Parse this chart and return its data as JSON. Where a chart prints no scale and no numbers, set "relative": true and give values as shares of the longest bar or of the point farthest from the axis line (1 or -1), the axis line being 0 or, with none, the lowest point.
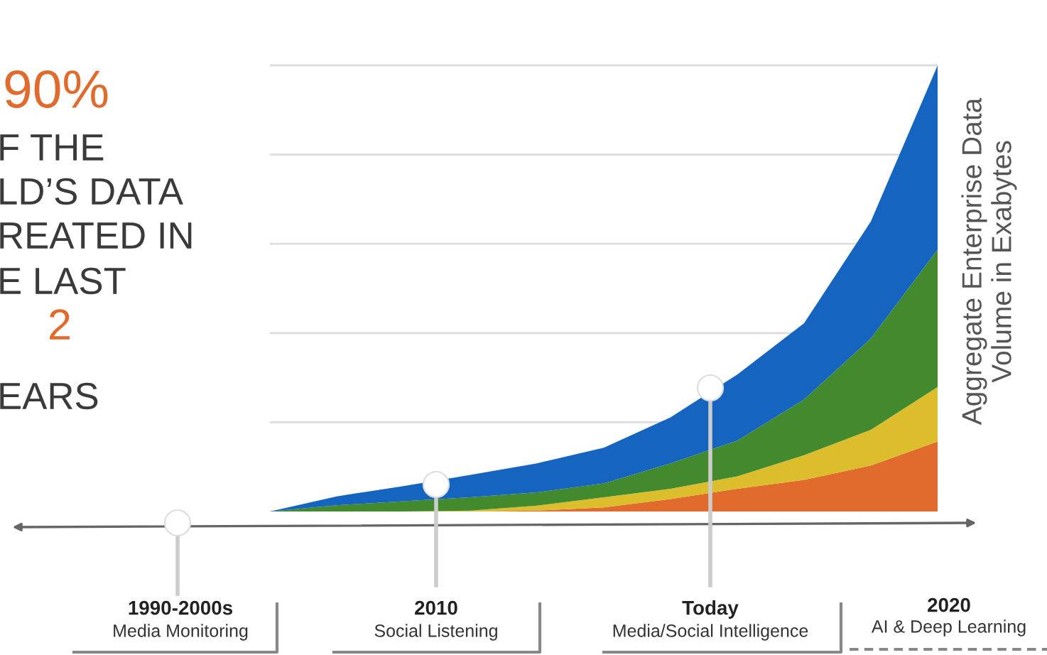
{
  "chart_data": {
    "type": "area",
    "stacked": true,
    "relative": true,
    "grid": "y",
    "legend": false,
    "ylabel": "Aggregate Enterprise Data\nVolume in Exabytes",
    "categories": [
      null,
      null,
      null,
      null,
      null,
      null,
      null,
      null,
      null,
      null,
      null
    ],
    "series": [
      {
        "color": "#e06b2c",
        "values": [
          0,
          0,
          0,
          0,
          0.002,
          0.009,
          0.028,
          0.051,
          0.071,
          0.103,
          0.157
        ]
      },
      {
        "color": "#dcbd2c",
        "values": [
          0,
          0,
          0,
          0.002,
          0.011,
          0.023,
          0.023,
          0.028,
          0.055,
          0.08,
          0.122
        ]
      },
      {
        "color": "#43892d",
        "values": [
          0,
          0.014,
          0.023,
          0.03,
          0.03,
          0.031,
          0.057,
          0.08,
          0.125,
          0.205,
          0.308
        ]
      },
      {
        "color": "#1565c0",
        "values": [
          0,
          0.02,
          0.034,
          0.05,
          0.065,
          0.08,
          0.103,
          0.148,
          0.171,
          0.262,
          0.413
        ]
      }
    ],
    "annotations": [
      "90%",
      "F THE",
      "LD’S DATA",
      "REATED IN",
      "E LAST",
      "2",
      "EARS",
      "1990-2000s",
      "Media Monitoring",
      "2010",
      "Social Listening",
      "Today",
      "Media/Social Intelligence",
      "2020",
      "AI & Deep Learning"
    ]
  }
}
